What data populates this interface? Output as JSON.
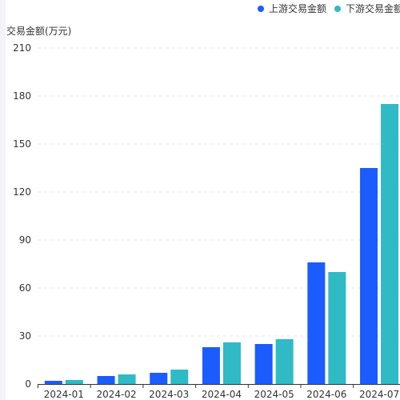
{
  "legend": {
    "upstream_label": "上游交易金额",
    "downstream_label": "下游交易金额"
  },
  "colors": {
    "upstream": "#1a5cff",
    "downstream": "#2fbac6"
  },
  "chart_data": {
    "type": "bar",
    "title": "",
    "xlabel": "",
    "ylabel": "交易金额(万元)",
    "ylim": [
      0,
      210
    ],
    "yticks": [
      0,
      30,
      60,
      90,
      120,
      150,
      180,
      210
    ],
    "grid": true,
    "legend_position": "top-right",
    "categories": [
      "2024-01",
      "2024-02",
      "2024-03",
      "2024-04",
      "2024-05",
      "2024-06",
      "2024-07"
    ],
    "series": [
      {
        "name": "上游交易金额",
        "values": [
          2,
          5,
          7,
          23,
          25,
          76,
          135
        ]
      },
      {
        "name": "下游交易金额",
        "values": [
          2.5,
          6,
          9,
          26,
          28,
          70,
          175
        ]
      }
    ]
  }
}
